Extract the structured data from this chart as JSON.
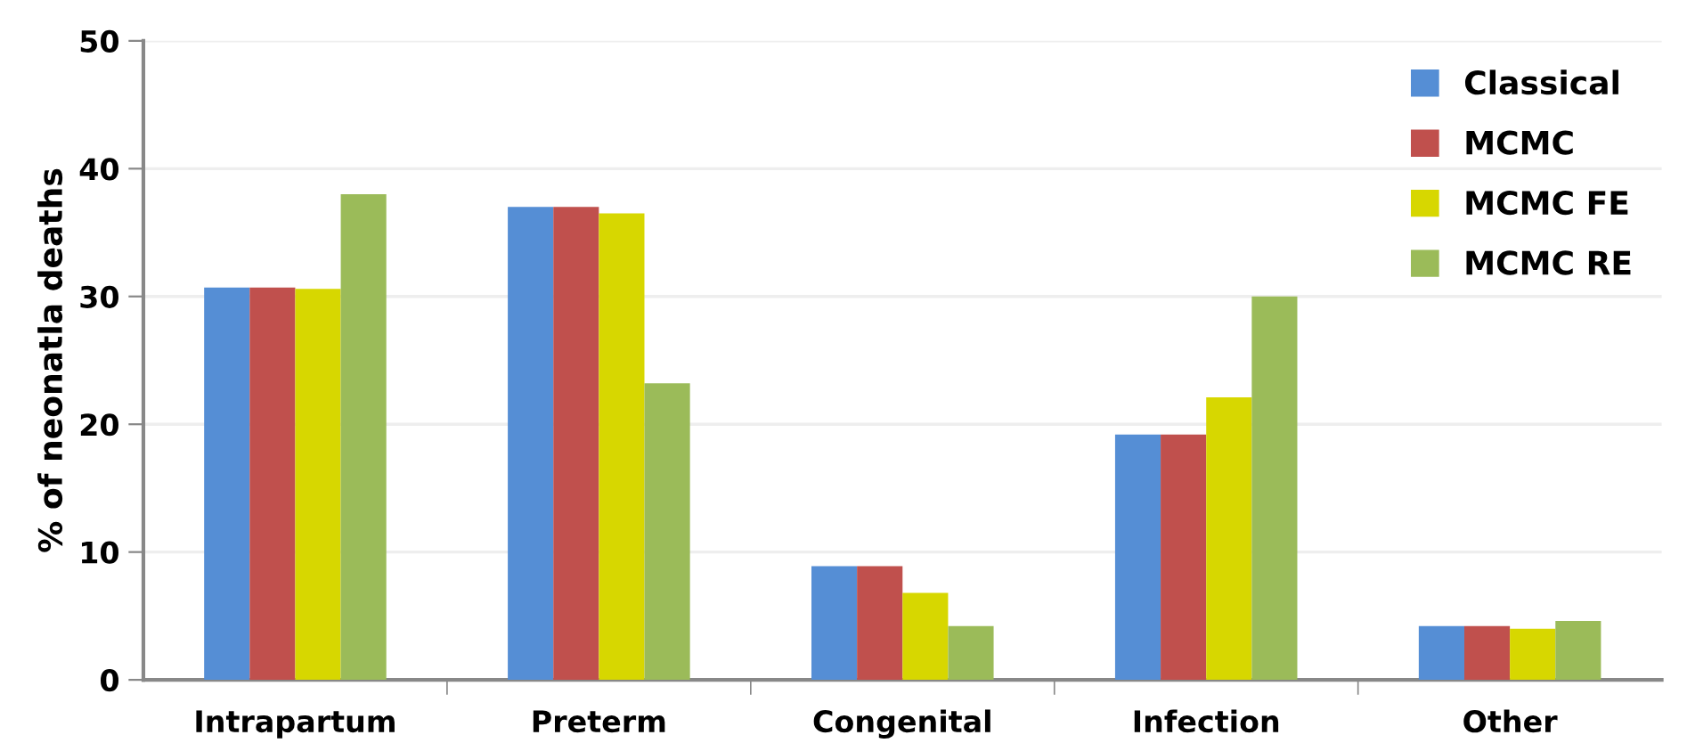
{
  "chart_data": {
    "type": "bar",
    "ylabel": "% of neonatla deaths",
    "categories": [
      "Intrapartum",
      "Preterm",
      "Congenital",
      "Infection",
      "Other"
    ],
    "series": [
      {
        "name": "Classical",
        "color": "#558ed5",
        "values": [
          30.7,
          37.0,
          8.9,
          19.2,
          4.2
        ]
      },
      {
        "name": "MCMC",
        "color": "#c0504d",
        "values": [
          30.7,
          37.0,
          8.9,
          19.2,
          4.2
        ]
      },
      {
        "name": "MCMC FE",
        "color": "#d7d700",
        "values": [
          30.6,
          36.5,
          6.8,
          22.1,
          4.0
        ]
      },
      {
        "name": "MCMC RE",
        "color": "#9bbb59",
        "values": [
          38.0,
          23.2,
          4.2,
          30.0,
          4.6
        ]
      }
    ],
    "ylim": [
      0,
      50
    ],
    "yticks": [
      0,
      10,
      20,
      30,
      40,
      50
    ],
    "grid": "y",
    "legend": "top right"
  }
}
